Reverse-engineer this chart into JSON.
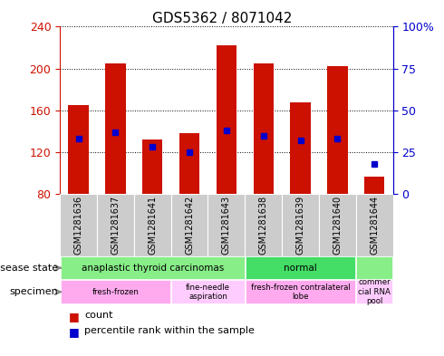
{
  "title": "GDS5362 / 8071042",
  "samples": [
    "GSM1281636",
    "GSM1281637",
    "GSM1281641",
    "GSM1281642",
    "GSM1281643",
    "GSM1281638",
    "GSM1281639",
    "GSM1281640",
    "GSM1281644"
  ],
  "counts": [
    165,
    205,
    132,
    138,
    222,
    205,
    168,
    202,
    97
  ],
  "percentile_ranks": [
    33,
    37,
    28,
    25,
    38,
    35,
    32,
    33,
    18
  ],
  "ylim_left": [
    80,
    240
  ],
  "ylim_right": [
    0,
    100
  ],
  "yticks_left": [
    80,
    120,
    160,
    200,
    240
  ],
  "yticks_right": [
    0,
    25,
    50,
    75,
    100
  ],
  "bar_color": "#CC1100",
  "dot_color": "#0000CC",
  "sample_bg_color": "#CCCCCC",
  "plot_bg": "#FFFFFF",
  "ds_group1_color": "#88EE88",
  "ds_group2_color": "#44DD66",
  "sp_group1_color": "#FFAAEE",
  "sp_group2_color": "#FFCCFF",
  "left_label_color": "#CC1100",
  "right_label_color": "#0000CC",
  "bar_width": 0.55,
  "title_fontsize": 11,
  "tick_fontsize": 9,
  "sample_fontsize": 7,
  "label_fontsize": 8,
  "legend_fontsize": 8
}
